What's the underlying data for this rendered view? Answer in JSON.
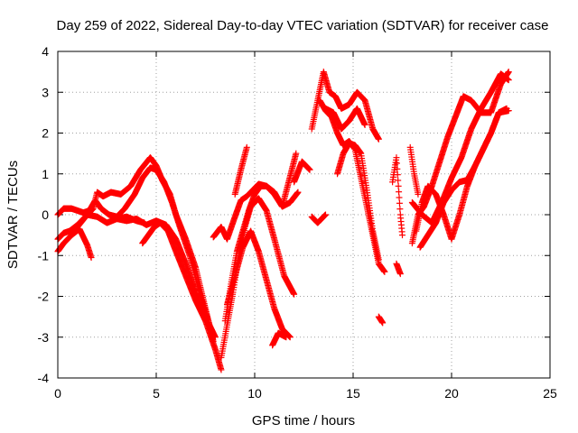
{
  "chart_data": {
    "type": "scatter",
    "title": "Day 259 of 2022, Sidereal Day-to-day VTEC variation (SDTVAR) for receiver case",
    "xlabel": "GPS time / hours",
    "ylabel": "SDTVAR / TECUs",
    "xlim": [
      0,
      25
    ],
    "ylim": [
      -4,
      4
    ],
    "xticks": [
      0,
      5,
      10,
      15,
      20,
      25
    ],
    "yticks": [
      -4,
      -3,
      -2,
      -1,
      0,
      1,
      2,
      3,
      4
    ],
    "grid": true,
    "legend": "none",
    "marker": "plus",
    "color": "#ff0000",
    "series": [
      {
        "x": [
          0.0,
          0.3,
          0.6,
          1.0,
          1.4,
          1.8,
          2.0,
          2.3,
          2.7,
          3.2,
          3.7,
          4.2,
          4.7,
          5.0,
          5.3,
          5.7,
          6.0,
          6.5,
          7.0,
          7.5,
          7.9
        ],
        "y": [
          -0.6,
          -0.45,
          -0.4,
          -0.25,
          -0.05,
          0.15,
          0.55,
          0.45,
          0.55,
          0.5,
          0.7,
          1.1,
          1.4,
          1.2,
          0.85,
          0.5,
          0.0,
          -0.6,
          -1.3,
          -2.3,
          -3.1
        ]
      },
      {
        "x": [
          0.0,
          0.3,
          0.7,
          1.1,
          1.5,
          1.7
        ],
        "y": [
          -0.9,
          -0.7,
          -0.5,
          -0.35,
          -0.75,
          -1.05
        ]
      },
      {
        "x": [
          0.0,
          0.3,
          0.7,
          1.0,
          1.3,
          1.6,
          1.9,
          2.2,
          2.6,
          3.0,
          3.4,
          3.9,
          4.3,
          4.7,
          5.0,
          5.4,
          5.8,
          6.2,
          6.7,
          7.2,
          7.7,
          8.0
        ],
        "y": [
          0.0,
          0.15,
          0.15,
          0.1,
          0.05,
          0.1,
          0.35,
          0.15,
          0.0,
          -0.05,
          0.15,
          0.5,
          0.9,
          1.15,
          1.1,
          0.8,
          0.3,
          -0.3,
          -1.0,
          -1.9,
          -2.7,
          -3.0
        ]
      },
      {
        "x": [
          1.0,
          1.5,
          2.0,
          2.5,
          3.0,
          3.5,
          4.0,
          4.5,
          5.0,
          5.5,
          6.0,
          6.5,
          7.0,
          7.5,
          8.0,
          8.3
        ],
        "y": [
          -0.3,
          0.0,
          -0.05,
          -0.2,
          -0.1,
          -0.15,
          -0.1,
          -0.25,
          -0.15,
          -0.25,
          -0.6,
          -1.2,
          -1.9,
          -2.6,
          -3.3,
          -3.8
        ]
      },
      {
        "x": [
          3.0,
          3.5,
          4.0,
          4.4
        ],
        "y": [
          -0.1,
          -0.05,
          -0.15,
          -0.2
        ]
      },
      {
        "x": [
          4.3,
          4.6,
          4.9,
          5.2,
          5.6,
          6.0,
          6.5,
          7.0,
          7.5
        ],
        "y": [
          -0.7,
          -0.5,
          -0.3,
          -0.2,
          -0.4,
          -0.9,
          -1.5,
          -2.1,
          -2.6
        ]
      },
      {
        "x": [
          7.9,
          8.3,
          8.6,
          9.0,
          9.3,
          9.6,
          9.9,
          10.2,
          10.6,
          11.0,
          11.4,
          11.7,
          12.1
        ],
        "y": [
          -0.55,
          -0.3,
          -0.6,
          -0.05,
          0.35,
          0.45,
          0.6,
          0.75,
          0.7,
          0.55,
          0.2,
          0.75,
          1.5
        ]
      },
      {
        "x": [
          8.3,
          8.6,
          8.9,
          9.2,
          9.5,
          9.8,
          10.2,
          10.6,
          11.0,
          11.5,
          12.0
        ],
        "y": [
          -3.5,
          -2.7,
          -1.9,
          -1.0,
          -0.3,
          0.2,
          0.4,
          0.1,
          -0.6,
          -1.5,
          -1.95
        ]
      },
      {
        "x": [
          8.5,
          8.8,
          9.1,
          9.4,
          9.7,
          10.0,
          10.3,
          10.6,
          11.0,
          11.4,
          11.8,
          12.2
        ],
        "y": [
          -2.6,
          -1.7,
          -0.9,
          -0.4,
          0.1,
          0.5,
          0.7,
          0.7,
          0.5,
          0.2,
          0.3,
          0.55
        ]
      },
      {
        "x": [
          8.6,
          9.0,
          9.4,
          9.8,
          10.2,
          10.6,
          11.0,
          11.4,
          11.8
        ],
        "y": [
          -2.2,
          -1.5,
          -0.8,
          -0.4,
          -0.9,
          -1.6,
          -2.3,
          -2.8,
          -3.0
        ]
      },
      {
        "x": [
          9.0,
          9.3,
          9.6
        ],
        "y": [
          0.5,
          1.1,
          1.65
        ]
      },
      {
        "x": [
          10.9,
          11.2,
          11.6
        ],
        "y": [
          -3.2,
          -2.9,
          -3.0
        ]
      },
      {
        "x": [
          12.0,
          12.4,
          12.8
        ],
        "y": [
          0.8,
          1.3,
          1.1
        ]
      },
      {
        "x": [
          12.9,
          13.2,
          13.6
        ],
        "y": [
          -0.05,
          -0.2,
          0.0
        ]
      },
      {
        "x": [
          12.9,
          13.2,
          13.5,
          13.8,
          14.1,
          14.4,
          14.8,
          15.2,
          15.6,
          16.0,
          16.3
        ],
        "y": [
          2.1,
          2.8,
          3.5,
          3.0,
          2.9,
          2.6,
          2.7,
          3.0,
          2.8,
          2.1,
          1.85
        ]
      },
      {
        "x": [
          13.3,
          13.6,
          13.9,
          14.2,
          14.5,
          14.8,
          15.1,
          15.4,
          15.7,
          16.0,
          16.3,
          16.6
        ],
        "y": [
          2.8,
          2.55,
          2.4,
          2.0,
          1.7,
          1.8,
          1.6,
          0.9,
          0.2,
          -0.5,
          -1.2,
          -1.4
        ]
      },
      {
        "x": [
          14.2,
          14.5,
          14.8,
          15.1,
          15.4,
          15.7,
          16.0,
          16.3
        ],
        "y": [
          1.0,
          1.5,
          1.75,
          1.7,
          1.5,
          0.6,
          -0.4,
          -1.1
        ]
      },
      {
        "x": [
          13.6,
          14.0,
          14.4,
          14.8,
          15.2,
          15.6
        ],
        "y": [
          2.6,
          2.5,
          2.1,
          2.3,
          2.6,
          2.2
        ]
      },
      {
        "x": [
          16.3,
          16.5
        ],
        "y": [
          -2.5,
          -2.65
        ]
      },
      {
        "x": [
          17.0,
          17.2,
          17.4,
          17.5
        ],
        "y": [
          0.8,
          1.4,
          0.0,
          -0.5
        ]
      },
      {
        "x": [
          17.2,
          17.4
        ],
        "y": [
          -1.2,
          -1.45
        ]
      },
      {
        "x": [
          18.0,
          18.5,
          19.0,
          19.5,
          20.0,
          20.5,
          21.0,
          21.5,
          22.0,
          22.5,
          22.9
        ],
        "y": [
          0.3,
          0.0,
          -0.2,
          0.3,
          0.9,
          1.4,
          2.1,
          2.6,
          3.0,
          3.45,
          3.3
        ]
      },
      {
        "x": [
          18.0,
          18.3,
          18.6,
          19.0,
          19.4,
          19.8,
          20.2,
          20.6,
          21.0,
          21.5,
          22.0,
          22.5,
          22.9
        ],
        "y": [
          -0.7,
          0.0,
          0.2,
          0.7,
          1.3,
          1.9,
          2.4,
          2.9,
          2.8,
          2.5,
          2.5,
          3.2,
          3.5
        ]
      },
      {
        "x": [
          18.2,
          18.5,
          18.8,
          19.2,
          19.6,
          20.0,
          20.4,
          20.8,
          21.2,
          21.6,
          22.0,
          22.4,
          22.9
        ],
        "y": [
          -0.4,
          0.3,
          0.7,
          0.5,
          0.0,
          -0.6,
          0.0,
          0.7,
          1.2,
          1.6,
          2.0,
          2.5,
          2.55
        ]
      },
      {
        "x": [
          18.4,
          18.8,
          19.2,
          19.6,
          20.0,
          20.4,
          20.8,
          21.2,
          21.6,
          22.0,
          22.4,
          22.8
        ],
        "y": [
          -0.8,
          -0.5,
          -0.2,
          0.3,
          0.6,
          0.8,
          0.85,
          1.2,
          1.6,
          2.0,
          2.5,
          2.6
        ]
      },
      {
        "x": [
          17.9,
          18.1,
          18.3
        ],
        "y": [
          1.65,
          1.0,
          0.5
        ]
      }
    ]
  }
}
